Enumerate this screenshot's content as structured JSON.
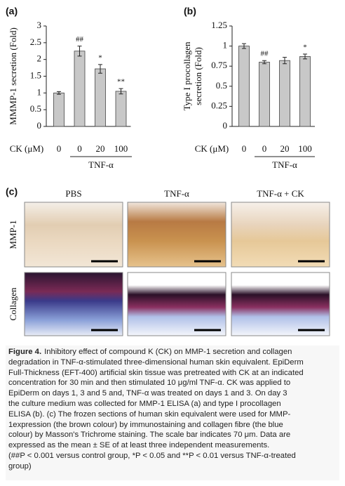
{
  "chart_data": [
    {
      "type": "bar",
      "panel": "(a)",
      "ylabel": "MMMP-1 secretion (Fold)",
      "xlabel": "CK (μM)",
      "categories": [
        "0",
        "0",
        "20",
        "100"
      ],
      "values": [
        1.0,
        2.25,
        1.72,
        1.05
      ],
      "errors": [
        0.04,
        0.15,
        0.13,
        0.08
      ],
      "annotations": [
        null,
        "##",
        "*",
        "**"
      ],
      "group_label": "TNF-α",
      "color": "#c8c8c8",
      "ylim": [
        0,
        3
      ],
      "yticks": [
        0,
        0.5,
        1,
        1.5,
        2,
        2.5,
        3
      ]
    },
    {
      "type": "bar",
      "panel": "(b)",
      "ylabel": [
        "Type I procollagen",
        "secretion (Fold)"
      ],
      "xlabel": "CK (μM)",
      "categories": [
        "0",
        "0",
        "20",
        "100"
      ],
      "values": [
        1.0,
        0.8,
        0.82,
        0.87
      ],
      "errors": [
        0.03,
        0.02,
        0.04,
        0.03
      ],
      "annotations": [
        null,
        "##",
        null,
        "*"
      ],
      "group_label": "TNF-α",
      "color": "#c8c8c8",
      "ylim": [
        0,
        1.25
      ],
      "yticks": [
        0,
        0.25,
        0.5,
        0.75,
        1,
        1.25
      ]
    }
  ],
  "panel_c": {
    "label": "(c)",
    "columns": [
      "PBS",
      "TNF-α",
      "TNF-α + CK"
    ],
    "rows": [
      "MMP-1",
      "Collagen"
    ]
  },
  "caption": {
    "label": "Figure 4.",
    "lines": [
      "Inhibitory effect of compound K (CK) on MMP-1 secretion and collagen",
      "degradation in TNF-α-stimulated three-dimensional human skin equivalent. EpiDerm",
      "Full-Thickness (EFT-400) artificial skin tissue was pretreated with CK at an indicated",
      "concentration for 30 min and then stimulated 10 μg/ml TNF-α. CK was applied to",
      "EpiDerm on days 1, 3 and 5 and, TNF-α was treated on days 1 and 3. On day 3",
      "the culture medium was collected for MMP-1 ELISA (a) and type I procollagen",
      "ELISA (b). (c) The frozen sections of human skin equivalent were used for MMP-",
      "1expression (the brown colour) by immunostaining and collagen fibre (the blue",
      "colour) by Masson's Trichrome staining. The scale bar indicates 70 μm. Data are",
      "expressed as the mean ± SE of at least three independent measurements.",
      "(##P < 0.001 versus control group, *P < 0.05 and **P < 0.01 versus TNF-α-treated",
      "group)"
    ]
  }
}
